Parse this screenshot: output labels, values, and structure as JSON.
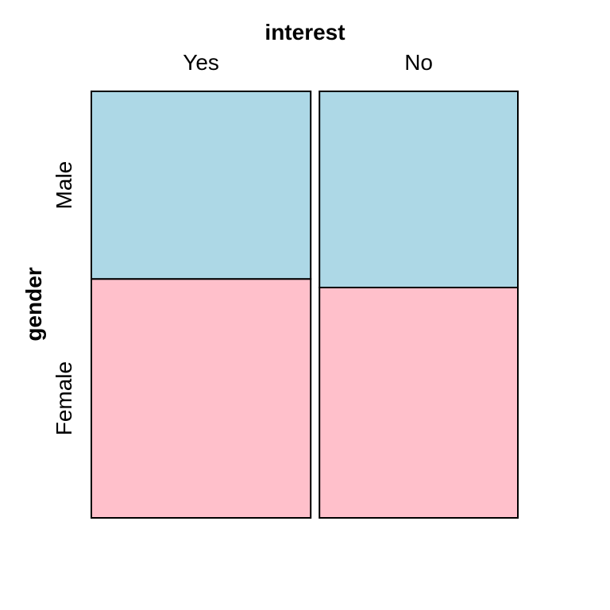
{
  "chart_data": {
    "type": "mosaic",
    "x_variable": "interest",
    "y_variable": "gender",
    "x_categories": [
      "Yes",
      "No"
    ],
    "y_categories": [
      "Male",
      "Female"
    ],
    "x_proportions": [
      0.525,
      0.475
    ],
    "y_proportions_by_x": [
      {
        "Male": 0.44,
        "Female": 0.56
      },
      {
        "Male": 0.46,
        "Female": 0.54
      }
    ],
    "colors": {
      "Male": "#ADD8E6",
      "Female": "#FFC0CB"
    }
  }
}
